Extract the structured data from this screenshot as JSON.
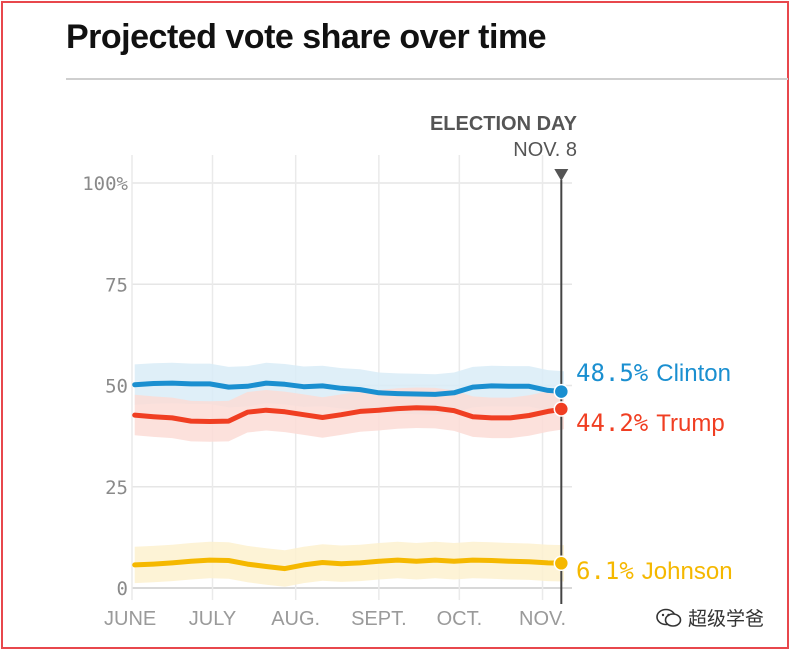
{
  "header": {
    "title": "Projected vote share over time"
  },
  "watermark": {
    "text": "超级学爸"
  },
  "chart_data": {
    "type": "line",
    "title": "Projected vote share over time",
    "xlabel": "",
    "ylabel": "",
    "ylim": [
      0,
      100
    ],
    "yticks": [
      0,
      25,
      50,
      75,
      100
    ],
    "ytick_labels": [
      "0",
      "25",
      "50",
      "75",
      "100%"
    ],
    "x": [
      1,
      8,
      15,
      22,
      29,
      36,
      43,
      50,
      57,
      64,
      71,
      78,
      85,
      92,
      99,
      106,
      113,
      120,
      127,
      134,
      141,
      148,
      155,
      161
    ],
    "x_ticks": [
      {
        "label": "JUNE",
        "day": 0
      },
      {
        "label": "JULY",
        "day": 30
      },
      {
        "label": "AUG.",
        "day": 61
      },
      {
        "label": "SEPT.",
        "day": 92
      },
      {
        "label": "OCT.",
        "day": 122
      },
      {
        "label": "NOV.",
        "day": 153
      }
    ],
    "xlim": [
      0,
      161
    ],
    "election_day": {
      "title": "ELECTION DAY",
      "date": "NOV. 8",
      "day": 160
    },
    "series": [
      {
        "name": "Clinton",
        "color": "#1a8fd0",
        "band_color": "#d9ecf7",
        "end_label": "48.5%",
        "values": [
          50.2,
          50.5,
          50.6,
          50.4,
          50.4,
          49.6,
          49.8,
          50.6,
          50.3,
          49.7,
          49.9,
          49.3,
          49.0,
          48.2,
          48.0,
          47.9,
          47.8,
          48.2,
          49.6,
          49.9,
          49.8,
          49.8,
          48.8,
          48.5
        ],
        "band_width": 5
      },
      {
        "name": "Trump",
        "color": "#f03e22",
        "band_color": "#fbdcd6",
        "end_label": "44.2%",
        "values": [
          42.7,
          42.3,
          42.0,
          41.2,
          41.1,
          41.2,
          43.4,
          43.9,
          43.5,
          42.8,
          42.1,
          42.8,
          43.6,
          43.9,
          44.3,
          44.5,
          44.4,
          43.8,
          42.3,
          42.0,
          42.0,
          42.6,
          43.6,
          44.2
        ],
        "band_width": 5
      },
      {
        "name": "Johnson",
        "color": "#f5b800",
        "band_color": "#fdf1cf",
        "end_label": "6.1%",
        "values": [
          5.7,
          5.9,
          6.2,
          6.6,
          6.9,
          6.8,
          5.9,
          5.3,
          4.8,
          5.7,
          6.3,
          6.0,
          6.2,
          6.6,
          6.9,
          6.6,
          6.9,
          6.6,
          6.9,
          6.8,
          6.6,
          6.5,
          6.2,
          6.1
        ],
        "band_width": 4.5
      }
    ]
  }
}
